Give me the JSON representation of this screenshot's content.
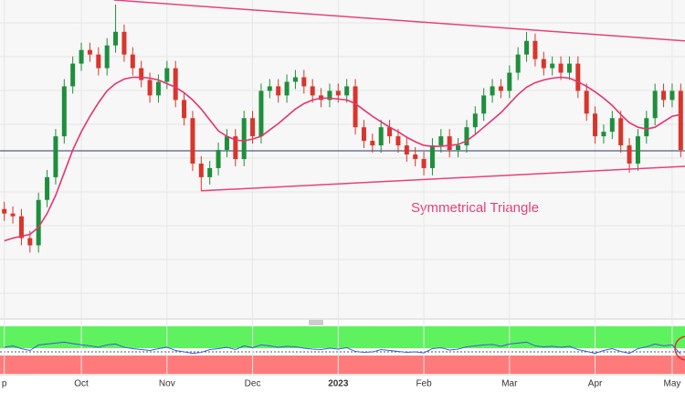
{
  "chart_data": {
    "type": "candlestick",
    "categories": [
      "p",
      null,
      null,
      null,
      null,
      null,
      null,
      null,
      null,
      "Oct",
      null,
      null,
      null,
      null,
      null,
      null,
      null,
      null,
      null,
      "Nov",
      null,
      null,
      null,
      null,
      null,
      null,
      null,
      null,
      null,
      "Dec",
      null,
      null,
      null,
      null,
      null,
      null,
      null,
      null,
      null,
      "2023",
      null,
      null,
      null,
      null,
      null,
      null,
      null,
      null,
      null,
      "Feb",
      null,
      null,
      null,
      null,
      null,
      null,
      null,
      null,
      null,
      "Mar",
      null,
      null,
      null,
      null,
      null,
      null,
      null,
      null,
      null,
      "Apr",
      null,
      null,
      null,
      null,
      null,
      null,
      null,
      null,
      "May",
      null
    ],
    "open": [
      120,
      115,
      112,
      88,
      80,
      130,
      155,
      200,
      255,
      280,
      295,
      290,
      275,
      300,
      315,
      290,
      275,
      262,
      245,
      260,
      275,
      240,
      220,
      170,
      155,
      165,
      185,
      200,
      175,
      220,
      200,
      250,
      255,
      245,
      260,
      265,
      255,
      245,
      240,
      250,
      245,
      255,
      210,
      195,
      190,
      210,
      200,
      190,
      180,
      175,
      165,
      190,
      200,
      185,
      190,
      210,
      225,
      245,
      255,
      250,
      270,
      290,
      305,
      285,
      275,
      280,
      270,
      280,
      250,
      225,
      200,
      205,
      220,
      190,
      170,
      200,
      220,
      250,
      240,
      250
    ],
    "high": [
      128,
      123,
      120,
      96,
      138,
      163,
      208,
      263,
      288,
      303,
      303,
      298,
      308,
      345,
      323,
      298,
      283,
      270,
      268,
      283,
      283,
      248,
      228,
      178,
      173,
      193,
      208,
      208,
      228,
      228,
      258,
      263,
      263,
      268,
      273,
      273,
      263,
      253,
      258,
      258,
      263,
      263,
      218,
      203,
      218,
      218,
      208,
      198,
      188,
      183,
      198,
      208,
      208,
      198,
      218,
      233,
      253,
      263,
      263,
      278,
      298,
      315,
      313,
      293,
      288,
      288,
      288,
      288,
      258,
      233,
      213,
      228,
      228,
      198,
      208,
      228,
      258,
      258,
      258,
      258
    ],
    "low": [
      107,
      104,
      80,
      72,
      72,
      122,
      147,
      192,
      247,
      272,
      282,
      267,
      267,
      292,
      282,
      267,
      254,
      237,
      237,
      252,
      232,
      212,
      162,
      140,
      147,
      157,
      177,
      167,
      167,
      192,
      192,
      242,
      237,
      237,
      252,
      247,
      237,
      232,
      232,
      237,
      237,
      202,
      187,
      182,
      182,
      192,
      182,
      172,
      167,
      157,
      157,
      182,
      177,
      177,
      182,
      202,
      217,
      237,
      242,
      242,
      262,
      282,
      277,
      267,
      267,
      262,
      262,
      242,
      217,
      192,
      192,
      197,
      182,
      160,
      162,
      192,
      212,
      232,
      232,
      177
    ],
    "close": [
      115,
      112,
      88,
      80,
      130,
      155,
      200,
      255,
      280,
      295,
      290,
      275,
      300,
      315,
      290,
      275,
      262,
      245,
      260,
      275,
      240,
      220,
      170,
      155,
      165,
      185,
      200,
      175,
      220,
      200,
      250,
      255,
      245,
      260,
      265,
      255,
      245,
      240,
      250,
      245,
      255,
      210,
      195,
      190,
      210,
      200,
      190,
      180,
      175,
      165,
      190,
      200,
      185,
      190,
      210,
      225,
      245,
      255,
      250,
      270,
      290,
      305,
      285,
      275,
      280,
      270,
      280,
      250,
      225,
      200,
      205,
      220,
      190,
      170,
      200,
      220,
      250,
      240,
      250,
      185
    ],
    "up_color": "#1e8f3c",
    "down_color": "#d9352b",
    "ylim": [
      0,
      350
    ],
    "moving_average": {
      "color": "#e63470",
      "values": [
        85,
        88,
        90,
        92,
        100,
        115,
        135,
        160,
        185,
        205,
        222,
        237,
        250,
        258,
        263,
        265,
        265,
        264,
        262,
        258,
        254,
        248,
        240,
        230,
        218,
        206,
        200,
        196,
        195,
        197,
        200,
        207,
        214,
        222,
        230,
        236,
        240,
        242,
        242,
        241,
        240,
        236,
        229,
        222,
        216,
        210,
        205,
        199,
        194,
        190,
        189,
        189,
        190,
        191,
        195,
        202,
        210,
        218,
        226,
        236,
        246,
        254,
        259,
        262,
        264,
        265,
        264,
        260,
        255,
        249,
        242,
        234,
        224,
        215,
        210,
        208,
        210,
        216,
        222,
        224
      ]
    },
    "trendlines": [
      {
        "color": "#e8407c",
        "x": [
          12.8,
          79.5
        ],
        "y": [
          350,
          305
        ]
      },
      {
        "color": "#e8407c",
        "x": [
          23,
          79.5
        ],
        "y": [
          140,
          167
        ]
      }
    ],
    "hline": {
      "value": 184,
      "color": "#2b3a67"
    },
    "annotation": "Symmetrical Triangle",
    "indicator": {
      "color": "#3a5bd9",
      "ylim": [
        0,
        100
      ],
      "values": [
        55,
        58,
        52,
        48,
        60,
        62,
        64,
        66,
        63,
        60,
        58,
        55,
        60,
        62,
        55,
        52,
        50,
        48,
        52,
        55,
        48,
        45,
        42,
        44,
        50,
        52,
        55,
        50,
        58,
        54,
        60,
        58,
        55,
        57,
        56,
        53,
        51,
        50,
        53,
        51,
        54,
        46,
        44,
        45,
        50,
        48,
        46,
        44,
        45,
        43,
        52,
        54,
        49,
        51,
        56,
        58,
        60,
        61,
        57,
        62,
        64,
        66,
        58,
        56,
        57,
        55,
        57,
        50,
        46,
        42,
        48,
        52,
        46,
        42,
        52,
        56,
        62,
        58,
        60,
        40
      ]
    }
  }
}
